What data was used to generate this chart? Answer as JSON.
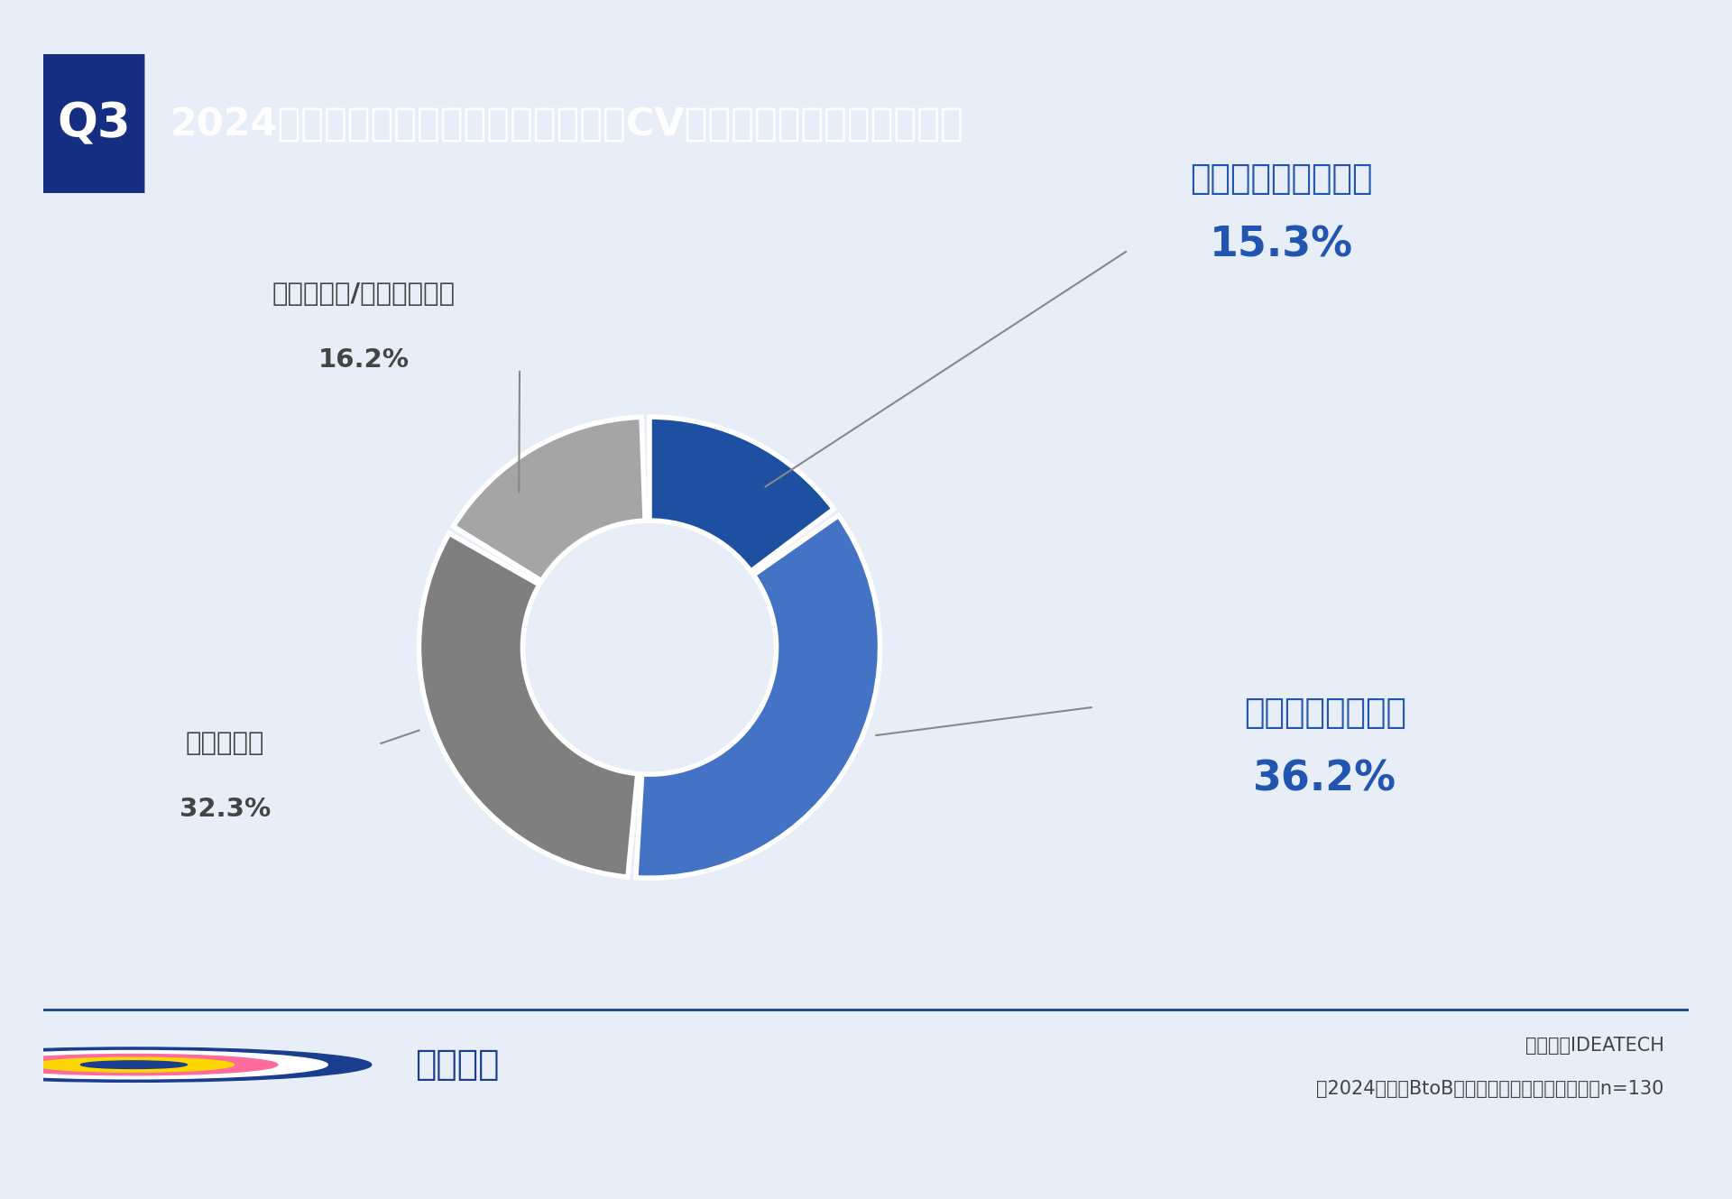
{
  "title": "2024年の現在、広告施策において目標CV数を達成できていますか。",
  "q_label": "Q3",
  "slices": [
    15.3,
    36.2,
    32.3,
    16.2
  ],
  "labels": [
    "大幅に達成している",
    "やや達成している",
    "未達である",
    "わからない/答えられない"
  ],
  "pct_labels": [
    "15.3%",
    "36.2%",
    "32.3%",
    "16.2%"
  ],
  "colors": [
    "#1E50A2",
    "#4472C4",
    "#7F7F7F",
    "#A5A5A5"
  ],
  "bg_color": "#FFFFFF",
  "outer_bg": "#E8EEF8",
  "header_bg": "#0D2B7A",
  "q3_bg": "#162E82",
  "label_blue": "#2255B0",
  "label_dark": "#444444",
  "border_color": "#1A3D8F",
  "source_line1": "株式会社IDEATECH",
  "source_line2": "【2024年版】BtoB企業の広告施策の実態調査｜n=130",
  "logo_text": "リサピー"
}
